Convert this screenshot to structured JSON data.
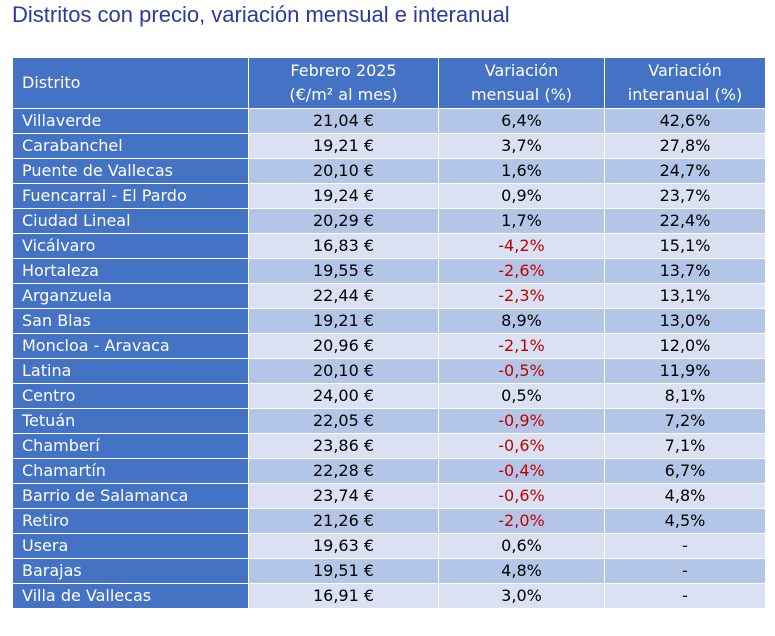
{
  "title": "Distritos con precio, variación mensual e interanual",
  "colors": {
    "header": "#4472c4",
    "row_odd": "#b4c6e7",
    "row_even": "#d9e1f2",
    "negative": "#c00000",
    "title": "#2b3a9b"
  },
  "headers": {
    "district": "Distrito",
    "price_l1": "Febrero 2025",
    "price_l2": "(€/m² al mes)",
    "monthly_l1": "Variación",
    "monthly_l2": "mensual (%)",
    "annual_l1": "Variación",
    "annual_l2": "interanual (%)"
  },
  "rows": [
    {
      "district": "Villaverde",
      "price": "21,04 €",
      "monthly": "6,4%",
      "annual": "42,6%"
    },
    {
      "district": "Carabanchel",
      "price": "19,21 €",
      "monthly": "3,7%",
      "annual": "27,8%"
    },
    {
      "district": "Puente de Vallecas",
      "price": "20,10 €",
      "monthly": "1,6%",
      "annual": "24,7%"
    },
    {
      "district": "Fuencarral - El Pardo",
      "price": "19,24 €",
      "monthly": "0,9%",
      "annual": "23,7%"
    },
    {
      "district": "Ciudad Lineal",
      "price": "20,29 €",
      "monthly": "1,7%",
      "annual": "22,4%"
    },
    {
      "district": "Vicálvaro",
      "price": "16,83 €",
      "monthly": "-4,2%",
      "annual": "15,1%"
    },
    {
      "district": "Hortaleza",
      "price": "19,55 €",
      "monthly": "-2,6%",
      "annual": "13,7%"
    },
    {
      "district": "Arganzuela",
      "price": "22,44 €",
      "monthly": "-2,3%",
      "annual": "13,1%"
    },
    {
      "district": "San Blas",
      "price": "19,21 €",
      "monthly": "8,9%",
      "annual": "13,0%"
    },
    {
      "district": "Moncloa - Aravaca",
      "price": "20,96 €",
      "monthly": "-2,1%",
      "annual": "12,0%"
    },
    {
      "district": "Latina",
      "price": "20,10 €",
      "monthly": "-0,5%",
      "annual": "11,9%"
    },
    {
      "district": "Centro",
      "price": "24,00 €",
      "monthly": "0,5%",
      "annual": "8,1%"
    },
    {
      "district": "Tetuán",
      "price": "22,05 €",
      "monthly": "-0,9%",
      "annual": "7,2%"
    },
    {
      "district": "Chamberí",
      "price": "23,86 €",
      "monthly": "-0,6%",
      "annual": "7,1%"
    },
    {
      "district": "Chamartín",
      "price": "22,28 €",
      "monthly": "-0,4%",
      "annual": "6,7%"
    },
    {
      "district": "Barrio de Salamanca",
      "price": "23,74 €",
      "monthly": "-0,6%",
      "annual": "4,8%"
    },
    {
      "district": "Retiro",
      "price": "21,26 €",
      "monthly": "-2,0%",
      "annual": "4,5%"
    },
    {
      "district": "Usera",
      "price": "19,63 €",
      "monthly": "0,6%",
      "annual": "-"
    },
    {
      "district": "Barajas",
      "price": "19,51 €",
      "monthly": "4,8%",
      "annual": "-"
    },
    {
      "district": "Villa de Vallecas",
      "price": "16,91 €",
      "monthly": "3,0%",
      "annual": "-"
    }
  ]
}
